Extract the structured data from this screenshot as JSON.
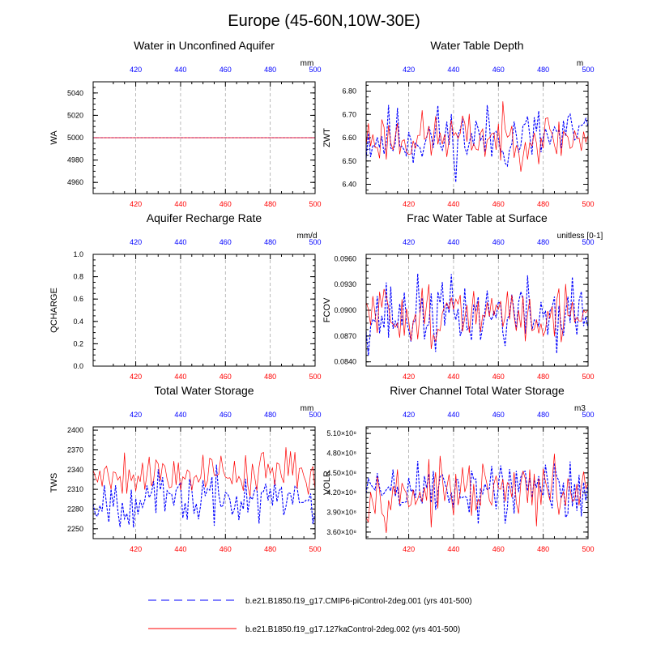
{
  "title": "Europe (45-60N,10W-30E)",
  "colors": {
    "series_a": "#0000ff",
    "series_b": "#ff0000",
    "grid": "#aaaaaa",
    "axis": "#000000"
  },
  "legend": [
    {
      "label": "b.e21.B1850.f19_g17.CMIP6-piControl-2deg.001 (yrs 401-500)",
      "color": "#0000ff",
      "style": "dashed"
    },
    {
      "label": "b.e21.B1850.f19_g17.127kaControl-2deg.002 (yrs 401-500)",
      "color": "#ff0000",
      "style": "solid"
    }
  ],
  "chart_data": [
    {
      "type": "line",
      "title": "Water in Unconfined Aquifer",
      "ylabel": "WA",
      "units": "mm",
      "xlim": [
        401,
        500
      ],
      "ylim": [
        4950,
        5050
      ],
      "xticks": [
        420,
        440,
        460,
        480,
        500
      ],
      "yticks": [
        4960,
        4980,
        5000,
        5020,
        5040
      ],
      "ytick_labels": [
        "4960",
        "4980",
        "5000",
        "5020",
        "5040"
      ],
      "series": [
        {
          "kind": "const",
          "value": 5000,
          "color": "#0000ff",
          "dash": true
        },
        {
          "kind": "const",
          "value": 5000,
          "color": "#ff0000",
          "dash": false
        }
      ]
    },
    {
      "type": "line",
      "title": "Water Table Depth",
      "ylabel": "ZWT",
      "units": "m",
      "xlim": [
        401,
        500
      ],
      "ylim": [
        6.36,
        6.84
      ],
      "xticks": [
        420,
        440,
        460,
        480,
        500
      ],
      "yticks": [
        6.4,
        6.5,
        6.6,
        6.7,
        6.8
      ],
      "ytick_labels": [
        "6.40",
        "6.50",
        "6.60",
        "6.70",
        "6.80"
      ],
      "series": [
        {
          "kind": "noise",
          "mean": 6.6,
          "amp": 0.1,
          "seed": 11,
          "color": "#0000ff",
          "dash": true
        },
        {
          "kind": "noise",
          "mean": 6.6,
          "amp": 0.08,
          "seed": 23,
          "color": "#ff0000",
          "dash": false
        }
      ]
    },
    {
      "type": "line",
      "title": "Aquifer Recharge Rate",
      "ylabel": "QCHARGE",
      "units": "mm/d",
      "xlim": [
        401,
        500
      ],
      "ylim": [
        0.0,
        1.0
      ],
      "xticks": [
        420,
        440,
        460,
        480,
        500
      ],
      "yticks": [
        0.0,
        0.2,
        0.4,
        0.6,
        0.8,
        1.0
      ],
      "ytick_labels": [
        "0.0",
        "0.2",
        "0.4",
        "0.6",
        "0.8",
        "1.0"
      ],
      "series": [
        {
          "kind": "const",
          "value": 0.0,
          "color": "#0000ff",
          "dash": true
        },
        {
          "kind": "const",
          "value": 0.0,
          "color": "#ff0000",
          "dash": false
        }
      ]
    },
    {
      "type": "line",
      "title": "Frac Water Table at Surface",
      "ylabel": "FCOV",
      "units": "unitless [0-1]",
      "xlim": [
        401,
        500
      ],
      "ylim": [
        0.0835,
        0.0965
      ],
      "xticks": [
        420,
        440,
        460,
        480,
        500
      ],
      "yticks": [
        0.084,
        0.087,
        0.09,
        0.093,
        0.096
      ],
      "ytick_labels": [
        "0.0840",
        "0.0870",
        "0.0900",
        "0.0930",
        "0.0960"
      ],
      "series": [
        {
          "kind": "noise",
          "mean": 0.0895,
          "amp": 0.003,
          "seed": 37,
          "color": "#0000ff",
          "dash": true
        },
        {
          "kind": "noise",
          "mean": 0.0895,
          "amp": 0.0025,
          "seed": 51,
          "color": "#ff0000",
          "dash": false
        }
      ]
    },
    {
      "type": "line",
      "title": "Total Water Storage",
      "ylabel": "TWS",
      "units": "mm",
      "xlim": [
        401,
        500
      ],
      "ylim": [
        2235,
        2405
      ],
      "xticks": [
        420,
        440,
        460,
        480,
        500
      ],
      "yticks": [
        2250,
        2280,
        2310,
        2340,
        2370,
        2400
      ],
      "ytick_labels": [
        "2250",
        "2280",
        "2310",
        "2340",
        "2370",
        "2400"
      ],
      "series": [
        {
          "kind": "noise",
          "mean": 2295,
          "amp": 28,
          "seed": 67,
          "color": "#0000ff",
          "dash": true
        },
        {
          "kind": "noise",
          "mean": 2335,
          "amp": 25,
          "seed": 79,
          "color": "#ff0000",
          "dash": false
        }
      ]
    },
    {
      "type": "line",
      "title": "River Channel Total Water Storage",
      "ylabel": "VOLR",
      "units": "m3",
      "xlim": [
        401,
        500
      ],
      "ylim": [
        350000000.0,
        520000000.0
      ],
      "xticks": [
        420,
        440,
        460,
        480,
        500
      ],
      "yticks": [
        360000000.0,
        390000000.0,
        420000000.0,
        450000000.0,
        480000000.0,
        510000000.0
      ],
      "ytick_labels": [
        "3.60×10⁸",
        "3.90×10⁸",
        "4.20×10⁸",
        "4.50×10⁸",
        "4.80×10⁸",
        "5.10×10⁸"
      ],
      "series": [
        {
          "kind": "noise",
          "mean": 425000000.0,
          "amp": 35000000.0,
          "seed": 89,
          "color": "#0000ff",
          "dash": true
        },
        {
          "kind": "noise",
          "mean": 420000000.0,
          "amp": 30000000.0,
          "seed": 97,
          "color": "#ff0000",
          "dash": false
        }
      ]
    }
  ]
}
